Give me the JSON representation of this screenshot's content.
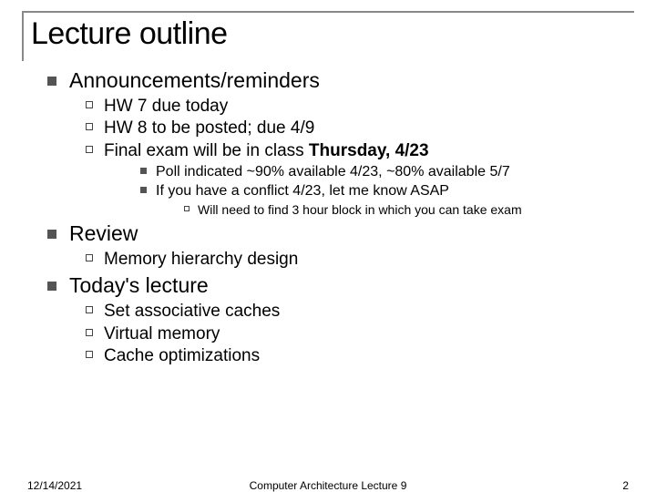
{
  "title": "Lecture outline",
  "sections": {
    "announcements": {
      "heading": "Announcements/reminders",
      "items": {
        "hw7": "HW 7 due today",
        "hw8": "HW 8 to be posted; due 4/9",
        "final_pre": "Final exam will be in class ",
        "final_bold": "Thursday, 4/23",
        "sub": {
          "poll": "Poll indicated ~90% available 4/23, ~80% available 5/7",
          "conflict": "If you have a conflict 4/23, let me know ASAP",
          "block": "Will need to find 3 hour block in which you can take exam"
        }
      }
    },
    "review": {
      "heading": "Review",
      "items": {
        "mem": "Memory hierarchy design"
      }
    },
    "today": {
      "heading": "Today's lecture",
      "items": {
        "set": "Set associative caches",
        "vm": "Virtual memory",
        "opt": "Cache optimizations"
      }
    }
  },
  "footer": {
    "date": "12/14/2021",
    "center": "Computer Architecture Lecture 9",
    "page": "2"
  },
  "style": {
    "bullet_color": "#545454",
    "border_color": "#888888",
    "text_color": "#000000",
    "background": "#ffffff"
  }
}
